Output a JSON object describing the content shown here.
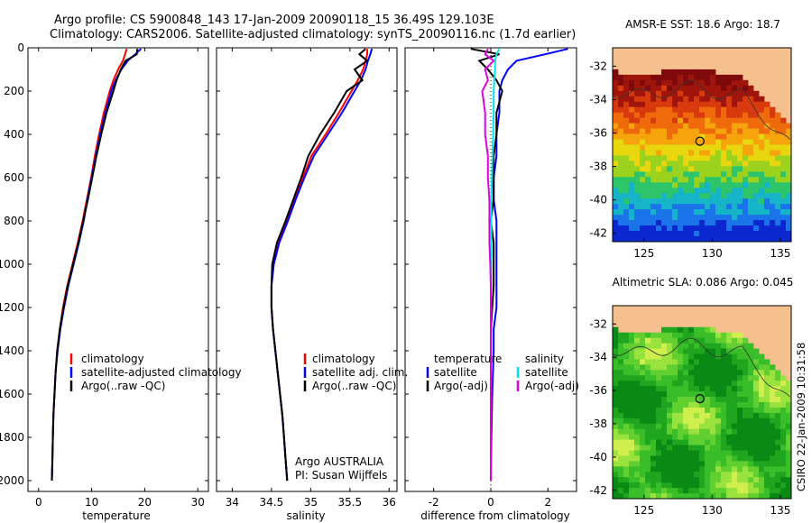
{
  "figure": {
    "title_line1": "Argo profile: CS 5900848_143 17-Jan-2009 20090118_15 36.49S 129.103E",
    "title_line2": "Climatology: CARS2006. Satellite-adjusted climatology: synTS_20090116.nc (1.7d earlier)",
    "credit": "CSIRO 22-Jan-2009 10:31:58"
  },
  "colors": {
    "climatology": "#ff0000",
    "satellite": "#0000ff",
    "argo": "#000000",
    "salinity_satellite": "#00e5e5",
    "salinity_argo": "#e000e0",
    "land": "#f5c08e"
  },
  "chart_data": [
    {
      "type": "line",
      "title": "",
      "xlabel": "temperature",
      "ylabel": "",
      "xlim": [
        -2,
        32
      ],
      "ylim": [
        2050,
        0
      ],
      "xticks": [
        0,
        10,
        20,
        30
      ],
      "yticks": [
        0,
        200,
        400,
        600,
        800,
        1000,
        1200,
        1400,
        1600,
        1800,
        2000
      ],
      "legend": [
        "climatology",
        "satellite-adjusted climatology",
        "Argo(..raw -QC)"
      ],
      "series": [
        {
          "name": "climatology",
          "color": "#ff0000",
          "depth": [
            5,
            30,
            60,
            100,
            150,
            200,
            300,
            400,
            500,
            600,
            700,
            800,
            900,
            1000,
            1100,
            1200,
            1300,
            1400,
            1500,
            1600,
            1700,
            1800,
            1900,
            2000
          ],
          "values": [
            16.6,
            16.3,
            15.9,
            15.0,
            14.1,
            13.4,
            12.3,
            11.4,
            10.6,
            9.9,
            9.1,
            8.3,
            7.4,
            6.4,
            5.4,
            4.6,
            4.0,
            3.5,
            3.2,
            3.0,
            2.8,
            2.7,
            2.6,
            2.5
          ]
        },
        {
          "name": "satellite-adjusted climatology",
          "color": "#0000ff",
          "depth": [
            5,
            30,
            60,
            100,
            150,
            200,
            300,
            400,
            500,
            600,
            700,
            800,
            900,
            1000,
            1100,
            1200,
            1300,
            1400,
            1500,
            1600,
            1700,
            1800,
            1900,
            2000
          ],
          "values": [
            19.3,
            18.2,
            16.8,
            15.6,
            14.5,
            13.7,
            12.6,
            11.6,
            10.8,
            10.0,
            9.2,
            8.5,
            7.6,
            6.6,
            5.6,
            4.8,
            4.1,
            3.6,
            3.2,
            3.0,
            2.8,
            2.7,
            2.6,
            2.5
          ]
        },
        {
          "name": "Argo(..raw -QC)",
          "color": "#000000",
          "depth": [
            5,
            30,
            60,
            100,
            150,
            200,
            300,
            400,
            500,
            600,
            700,
            800,
            900,
            1000,
            1100,
            1200,
            1300,
            1400,
            1500,
            1600,
            1700,
            1800,
            1900,
            2000
          ],
          "values": [
            18.6,
            18.5,
            16.4,
            15.5,
            14.7,
            14.1,
            12.8,
            11.8,
            10.9,
            10.1,
            9.3,
            8.4,
            7.5,
            6.5,
            5.5,
            4.7,
            4.0,
            3.5,
            3.2,
            3.0,
            2.8,
            2.7,
            2.6,
            2.5
          ]
        }
      ]
    },
    {
      "type": "line",
      "title": "",
      "xlabel": "salinity",
      "ylabel": "",
      "xlim": [
        33.8,
        36.1
      ],
      "ylim": [
        2050,
        0
      ],
      "xticks": [
        34,
        34.5,
        35,
        35.5,
        36
      ],
      "legend": [
        "climatology",
        "satellite adj. clim.",
        "Argo(..raw -QC)"
      ],
      "annotation": [
        "Argo AUSTRALIA",
        "PI: Susan Wijffels"
      ],
      "series": [
        {
          "name": "climatology",
          "color": "#ff0000",
          "depth": [
            5,
            30,
            60,
            100,
            150,
            200,
            300,
            400,
            500,
            600,
            700,
            800,
            900,
            1000,
            1100,
            1200,
            1300,
            1400,
            1500,
            1600,
            1700,
            1800,
            1900,
            2000
          ],
          "values": [
            35.72,
            35.72,
            35.7,
            35.67,
            35.6,
            35.52,
            35.36,
            35.19,
            35.01,
            34.9,
            34.8,
            34.7,
            34.59,
            34.52,
            34.5,
            34.5,
            34.52,
            34.55,
            34.58,
            34.61,
            34.64,
            34.66,
            34.68,
            34.7
          ]
        },
        {
          "name": "satellite adj. clim.",
          "color": "#0000ff",
          "depth": [
            5,
            30,
            60,
            100,
            150,
            200,
            300,
            400,
            500,
            600,
            700,
            800,
            900,
            1000,
            1100,
            1200,
            1300,
            1400,
            1500,
            1600,
            1700,
            1800,
            1900,
            2000
          ],
          "values": [
            35.78,
            35.76,
            35.73,
            35.7,
            35.64,
            35.56,
            35.4,
            35.22,
            35.04,
            34.92,
            34.81,
            34.71,
            34.6,
            34.53,
            34.5,
            34.5,
            34.52,
            34.55,
            34.58,
            34.61,
            34.64,
            34.66,
            34.68,
            34.7
          ]
        },
        {
          "name": "Argo(..raw -QC)",
          "color": "#000000",
          "depth": [
            5,
            30,
            60,
            100,
            150,
            200,
            300,
            400,
            500,
            600,
            700,
            800,
            900,
            1000,
            1100,
            1200,
            1300,
            1400,
            1500,
            1600,
            1700,
            1800,
            1900,
            2000
          ],
          "values": [
            35.7,
            35.62,
            35.72,
            35.56,
            35.66,
            35.46,
            35.3,
            35.12,
            34.97,
            34.88,
            34.78,
            34.68,
            34.57,
            34.51,
            34.5,
            34.5,
            34.52,
            34.55,
            34.58,
            34.61,
            34.64,
            34.66,
            34.68,
            34.7
          ]
        }
      ]
    },
    {
      "type": "line",
      "title": "",
      "xlabel": "difference from climatology",
      "ylabel": "",
      "xlim": [
        -3,
        3
      ],
      "ylim": [
        2050,
        0
      ],
      "xticks": [
        -2,
        0,
        2
      ],
      "legend_left_title": "temperature",
      "legend_right_title": "salinity",
      "legend": [
        "satellite",
        "Argo(-adj)",
        "satellite",
        "Argo(-adj)"
      ],
      "series": [
        {
          "name": "temperature satellite",
          "color": "#0000ff",
          "depth": [
            5,
            30,
            60,
            100,
            150,
            200,
            300,
            400,
            500,
            600,
            700,
            800,
            900,
            1000,
            1100,
            1200,
            1300,
            1400,
            1600,
            1800,
            2000
          ],
          "values": [
            2.7,
            1.9,
            0.9,
            0.6,
            0.4,
            0.3,
            0.3,
            0.2,
            0.2,
            0.1,
            0.1,
            0.2,
            0.2,
            0.2,
            0.2,
            0.2,
            0.1,
            0.1,
            0.05,
            0.02,
            0.0
          ]
        },
        {
          "name": "temperature Argo(-adj)",
          "color": "#000000",
          "depth": [
            5,
            30,
            60,
            100,
            150,
            200,
            300,
            400,
            500,
            600,
            700,
            800,
            900,
            1000,
            1100,
            1200,
            1300,
            1400,
            1600,
            1800,
            2000
          ],
          "values": [
            -0.7,
            0.3,
            -0.4,
            -0.1,
            0.2,
            0.4,
            0.2,
            0.2,
            0.1,
            0.1,
            0.1,
            0.0,
            0.1,
            0.1,
            0.1,
            0.05,
            0.0,
            0.0,
            0.0,
            0.0,
            0.0
          ]
        },
        {
          "name": "salinity satellite",
          "color": "#00e5e5",
          "depth": [
            5,
            30,
            60,
            100,
            150,
            200,
            300,
            400,
            500,
            600,
            700,
            800,
            900,
            1000,
            1100,
            1200,
            1300,
            1400,
            1600,
            1800,
            2000
          ],
          "values": [
            0.3,
            0.2,
            0.15,
            0.15,
            0.12,
            0.1,
            0.1,
            0.08,
            0.06,
            0.04,
            0.02,
            0.02,
            0.02,
            0.01,
            0.0,
            0.0,
            0.0,
            0.0,
            0.0,
            0.0,
            0.0
          ]
        },
        {
          "name": "salinity Argo(-adj)",
          "color": "#e000e0",
          "depth": [
            5,
            30,
            60,
            100,
            150,
            200,
            300,
            400,
            500,
            600,
            700,
            800,
            900,
            1000,
            1100,
            1200,
            1300,
            1400,
            1600,
            1800,
            2000
          ],
          "values": [
            -0.1,
            -0.2,
            0.1,
            -0.2,
            -0.1,
            -0.3,
            -0.2,
            -0.2,
            -0.1,
            -0.1,
            -0.05,
            -0.05,
            -0.05,
            -0.02,
            0.0,
            0.0,
            0.0,
            0.0,
            0.0,
            0.0,
            0.0
          ]
        }
      ]
    },
    {
      "type": "heatmap",
      "title": "AMSR-E SST: 18.6 Argo: 18.7",
      "xlim": [
        122.7,
        135.8
      ],
      "ylim": [
        -42.5,
        -30.9
      ],
      "xticks": [
        125,
        130,
        135
      ],
      "yticks": [
        -32,
        -34,
        -36,
        -38,
        -40,
        -42
      ],
      "marker": {
        "lon": 129.103,
        "lat": -36.49
      }
    },
    {
      "type": "heatmap",
      "title": "Altimetric SLA: 0.086 Argo: 0.045",
      "xlim": [
        122.7,
        135.8
      ],
      "ylim": [
        -42.5,
        -30.9
      ],
      "xticks": [
        125,
        130,
        135
      ],
      "yticks": [
        -32,
        -34,
        -36,
        -38,
        -40,
        -42
      ],
      "marker": {
        "lon": 129.103,
        "lat": -36.49
      }
    }
  ]
}
